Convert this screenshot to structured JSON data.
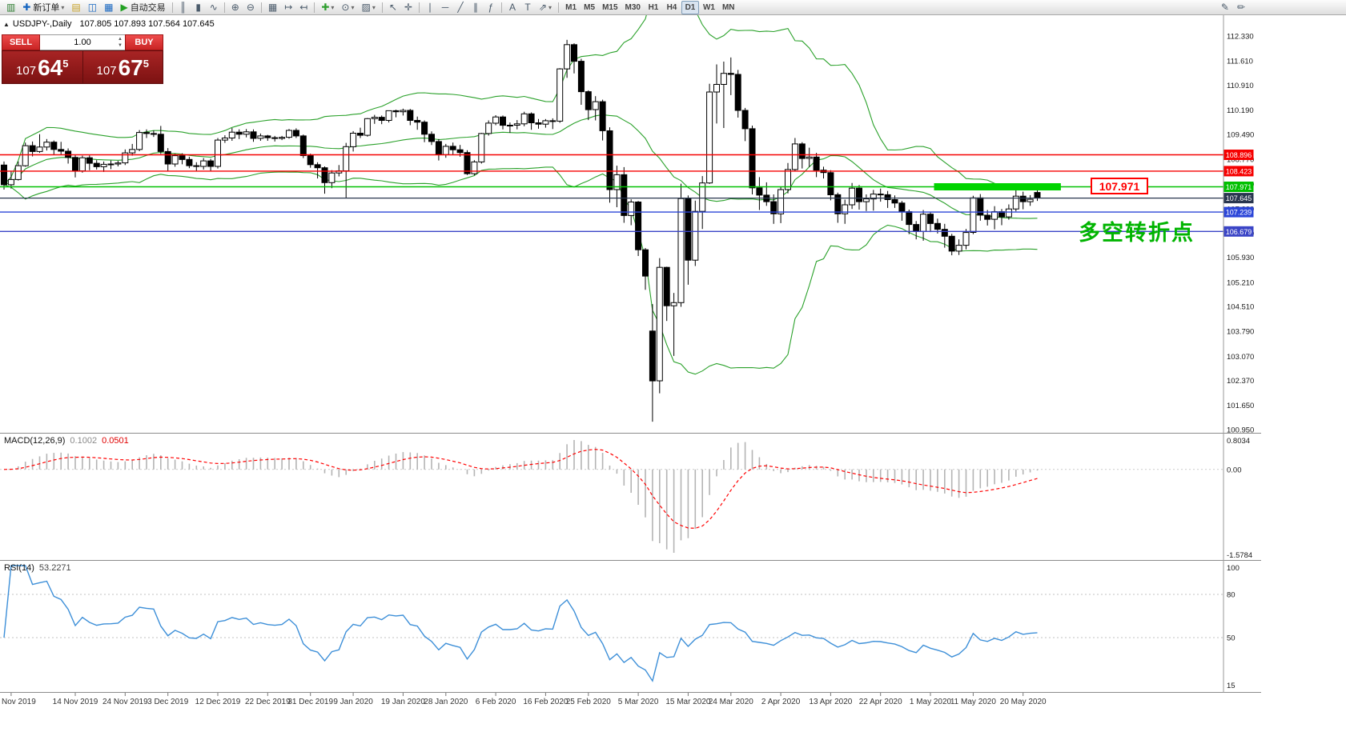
{
  "toolbar": {
    "left_items": [
      {
        "name": "chart-window-icon",
        "glyph": "▥",
        "color": "#2e7d32"
      },
      {
        "name": "new-order-button",
        "icon": "✚",
        "icon_color": "#1565c0",
        "label": "新订单",
        "caret": true
      },
      {
        "name": "profiles-icon",
        "glyph": "▤",
        "color": "#c9a227"
      },
      {
        "name": "charts-grid-icon",
        "glyph": "◫",
        "color": "#1565c0"
      },
      {
        "name": "data-window-icon",
        "glyph": "▦",
        "color": "#1565c0"
      },
      {
        "name": "autotrading-button",
        "icon": "▶",
        "icon_color": "#22a022",
        "label": "自动交易"
      },
      {
        "sep": true
      },
      {
        "name": "bar-chart-icon",
        "glyph": "║"
      },
      {
        "name": "candlestick-chart-icon",
        "glyph": "▮"
      },
      {
        "name": "line-chart-icon",
        "glyph": "∿"
      },
      {
        "sep": true
      },
      {
        "name": "zoom-in-icon",
        "glyph": "⊕"
      },
      {
        "name": "zoom-out-icon",
        "glyph": "⊖"
      },
      {
        "sep": true
      },
      {
        "name": "tile-windows-icon",
        "glyph": "▦"
      },
      {
        "name": "auto-scroll-icon",
        "glyph": "↦"
      },
      {
        "name": "chart-shift-icon",
        "glyph": "↤"
      },
      {
        "sep": true
      },
      {
        "name": "indicators-button",
        "glyph": "✚",
        "color": "#2e9e2e",
        "caret": true
      },
      {
        "name": "periods-button",
        "glyph": "⊙",
        "caret": true
      },
      {
        "name": "templates-button",
        "glyph": "▨",
        "caret": true
      },
      {
        "sep": true
      },
      {
        "name": "cursor-icon",
        "glyph": "↖"
      },
      {
        "name": "crosshair-icon",
        "glyph": "✛"
      },
      {
        "sep": true
      },
      {
        "name": "vertical-line-icon",
        "glyph": "∣"
      },
      {
        "name": "horizontal-line-icon",
        "glyph": "─"
      },
      {
        "name": "trendline-icon",
        "glyph": "╱"
      },
      {
        "name": "channel-icon",
        "glyph": "∥"
      },
      {
        "name": "fibonacci-icon",
        "glyph": "ƒ"
      },
      {
        "sep": true
      },
      {
        "name": "text-icon",
        "glyph": "A"
      },
      {
        "name": "text-label-icon",
        "glyph": "T"
      },
      {
        "name": "arrows-icon",
        "glyph": "⇗",
        "caret": true
      },
      {
        "sep": true
      }
    ],
    "timeframes": [
      {
        "label": "M1"
      },
      {
        "label": "M5"
      },
      {
        "label": "M15"
      },
      {
        "label": "M30"
      },
      {
        "label": "H1"
      },
      {
        "label": "H4"
      },
      {
        "label": "D1",
        "active": true
      },
      {
        "label": "W1"
      },
      {
        "label": "MN"
      }
    ],
    "right_items": [
      {
        "name": "pencil-icon",
        "glyph": "✎"
      },
      {
        "name": "marker-icon",
        "glyph": "✏"
      }
    ]
  },
  "chart": {
    "title_symbol": "USDJPY-,Daily",
    "title_ohlc": "107.805 107.893 107.564 107.645"
  },
  "trade_panel": {
    "sell_label": "SELL",
    "buy_label": "BUY",
    "volume": "1.00",
    "bid": {
      "prefix": "107",
      "big": "64",
      "sup": "5"
    },
    "ask": {
      "prefix": "107",
      "big": "67",
      "sup": "5"
    }
  },
  "chart_data": {
    "type": "candlestick",
    "symbol": "USDJPY",
    "period": "Daily",
    "ylim": [
      100.95,
      112.33
    ],
    "y_ticks": [
      "112.330",
      "111.610",
      "110.910",
      "110.190",
      "109.490",
      "108.770",
      "108.050",
      "107.330",
      "106.630",
      "105.930",
      "105.210",
      "104.510",
      "103.790",
      "103.070",
      "102.370",
      "101.650",
      "100.950"
    ],
    "x_labels": [
      [
        1,
        "Nov 2019"
      ],
      [
        10,
        "14 Nov 2019"
      ],
      [
        17,
        "24 Nov 2019"
      ],
      [
        23,
        "3 Dec 2019"
      ],
      [
        30,
        "12 Dec 2019"
      ],
      [
        37,
        "22 Dec 2019"
      ],
      [
        43,
        "31 Dec 2019"
      ],
      [
        49,
        "9 Jan 2020"
      ],
      [
        56,
        "19 Jan 2020"
      ],
      [
        62,
        "28 Jan 2020"
      ],
      [
        69,
        "6 Feb 2020"
      ],
      [
        76,
        "16 Feb 2020"
      ],
      [
        82,
        "25 Feb 2020"
      ],
      [
        89,
        "5 Mar 2020"
      ],
      [
        96,
        "15 Mar 2020"
      ],
      [
        102,
        "24 Mar 2020"
      ],
      [
        109,
        "2 Apr 2020"
      ],
      [
        116,
        "13 Apr 2020"
      ],
      [
        123,
        "22 Apr 2020"
      ],
      [
        130,
        "1 May 2020"
      ],
      [
        136,
        "11 May 2020"
      ],
      [
        143,
        "20 May 2020"
      ]
    ],
    "candles": [
      [
        108.6,
        108.7,
        107.89,
        108.03
      ],
      [
        108.03,
        108.42,
        107.92,
        108.18
      ],
      [
        108.18,
        108.7,
        108.15,
        108.58
      ],
      [
        108.58,
        109.25,
        108.55,
        109.16
      ],
      [
        109.16,
        109.28,
        108.85,
        108.99
      ],
      [
        108.99,
        109.49,
        108.95,
        109.12
      ],
      [
        109.12,
        109.35,
        109.02,
        109.26
      ],
      [
        109.26,
        109.31,
        108.9,
        109.05
      ],
      [
        109.05,
        109.27,
        108.91,
        109.0
      ],
      [
        109.0,
        109.08,
        108.64,
        108.82
      ],
      [
        108.82,
        108.89,
        108.24,
        108.43
      ],
      [
        108.43,
        108.87,
        108.38,
        108.81
      ],
      [
        108.81,
        108.88,
        108.45,
        108.65
      ],
      [
        108.65,
        108.74,
        108.47,
        108.55
      ],
      [
        108.55,
        108.7,
        108.4,
        108.62
      ],
      [
        108.62,
        108.73,
        108.48,
        108.63
      ],
      [
        108.63,
        108.72,
        108.56,
        108.66
      ],
      [
        108.66,
        109.05,
        108.6,
        108.95
      ],
      [
        108.95,
        109.21,
        108.87,
        109.05
      ],
      [
        109.05,
        109.61,
        109.0,
        109.54
      ],
      [
        109.54,
        109.63,
        109.38,
        109.51
      ],
      [
        109.51,
        109.6,
        109.41,
        109.49
      ],
      [
        109.49,
        109.73,
        108.92,
        108.99
      ],
      [
        108.99,
        109.09,
        108.43,
        108.63
      ],
      [
        108.63,
        108.93,
        108.55,
        108.87
      ],
      [
        108.87,
        108.94,
        108.62,
        108.76
      ],
      [
        108.76,
        108.84,
        108.51,
        108.58
      ],
      [
        108.58,
        108.68,
        108.42,
        108.56
      ],
      [
        108.56,
        108.8,
        108.47,
        108.72
      ],
      [
        108.72,
        108.78,
        108.41,
        108.56
      ],
      [
        108.56,
        109.38,
        108.5,
        109.32
      ],
      [
        109.32,
        109.46,
        109.24,
        109.38
      ],
      [
        109.38,
        109.67,
        109.3,
        109.55
      ],
      [
        109.55,
        109.63,
        109.35,
        109.49
      ],
      [
        109.49,
        109.64,
        109.4,
        109.56
      ],
      [
        109.56,
        109.63,
        109.27,
        109.37
      ],
      [
        109.37,
        109.51,
        109.3,
        109.44
      ],
      [
        109.44,
        109.47,
        109.3,
        109.39
      ],
      [
        109.39,
        109.44,
        109.28,
        109.37
      ],
      [
        109.37,
        109.44,
        109.32,
        109.4
      ],
      [
        109.4,
        109.64,
        109.36,
        109.6
      ],
      [
        109.6,
        109.66,
        109.38,
        109.44
      ],
      [
        109.44,
        109.48,
        108.8,
        108.87
      ],
      [
        108.87,
        108.93,
        108.52,
        108.61
      ],
      [
        108.61,
        108.68,
        108.21,
        108.52
      ],
      [
        108.52,
        108.56,
        107.77,
        108.09
      ],
      [
        108.09,
        108.45,
        107.93,
        108.37
      ],
      [
        108.37,
        108.6,
        108.27,
        108.43
      ],
      [
        108.43,
        109.24,
        107.65,
        109.13
      ],
      [
        109.13,
        109.58,
        108.99,
        109.52
      ],
      [
        109.52,
        109.68,
        109.38,
        109.46
      ],
      [
        109.46,
        109.96,
        109.42,
        109.94
      ],
      [
        109.94,
        110.05,
        109.79,
        109.98
      ],
      [
        109.98,
        110.03,
        109.78,
        109.89
      ],
      [
        109.89,
        110.18,
        109.83,
        110.17
      ],
      [
        110.17,
        110.2,
        109.98,
        110.14
      ],
      [
        110.14,
        110.23,
        110.03,
        110.18
      ],
      [
        110.18,
        110.22,
        109.75,
        109.89
      ],
      [
        109.89,
        110.0,
        109.62,
        109.84
      ],
      [
        109.84,
        109.89,
        109.26,
        109.49
      ],
      [
        109.49,
        109.57,
        109.18,
        109.28
      ],
      [
        109.28,
        109.35,
        108.73,
        108.9
      ],
      [
        108.9,
        109.21,
        108.81,
        109.14
      ],
      [
        109.14,
        109.25,
        108.9,
        109.04
      ],
      [
        109.04,
        109.18,
        108.84,
        108.96
      ],
      [
        108.96,
        109.03,
        108.31,
        108.35
      ],
      [
        108.35,
        108.74,
        108.3,
        108.69
      ],
      [
        108.69,
        109.53,
        108.64,
        109.51
      ],
      [
        109.51,
        109.89,
        109.45,
        109.81
      ],
      [
        109.81,
        110.04,
        109.75,
        109.99
      ],
      [
        109.99,
        110.03,
        109.63,
        109.75
      ],
      [
        109.75,
        109.83,
        109.53,
        109.75
      ],
      [
        109.75,
        109.9,
        109.63,
        109.79
      ],
      [
        109.79,
        110.14,
        109.72,
        110.08
      ],
      [
        110.08,
        110.12,
        109.62,
        109.82
      ],
      [
        109.82,
        109.93,
        109.65,
        109.78
      ],
      [
        109.78,
        109.93,
        109.68,
        109.88
      ],
      [
        109.88,
        109.95,
        109.64,
        109.87
      ],
      [
        109.87,
        111.4,
        109.82,
        111.38
      ],
      [
        111.38,
        112.22,
        111.12,
        112.08
      ],
      [
        112.08,
        112.12,
        111.25,
        111.6
      ],
      [
        111.6,
        111.67,
        110.34,
        110.72
      ],
      [
        110.72,
        110.76,
        109.9,
        110.2
      ],
      [
        110.2,
        110.59,
        109.89,
        110.43
      ],
      [
        110.43,
        110.49,
        109.31,
        109.59
      ],
      [
        109.59,
        109.69,
        107.51,
        107.89
      ],
      [
        107.89,
        108.58,
        107.38,
        108.32
      ],
      [
        108.32,
        108.54,
        106.93,
        107.14
      ],
      [
        107.14,
        107.61,
        106.86,
        107.53
      ],
      [
        107.53,
        107.56,
        105.97,
        106.15
      ],
      [
        106.15,
        106.2,
        104.99,
        105.39
      ],
      [
        103.8,
        104.58,
        101.18,
        102.36
      ],
      [
        102.36,
        105.91,
        102.0,
        105.64
      ],
      [
        105.64,
        105.66,
        104.09,
        104.53
      ],
      [
        104.53,
        104.9,
        103.08,
        104.62
      ],
      [
        104.62,
        108.06,
        104.5,
        107.63
      ],
      [
        107.63,
        107.72,
        105.14,
        105.85
      ],
      [
        105.85,
        107.57,
        105.68,
        107.26
      ],
      [
        107.26,
        108.28,
        106.75,
        108.08
      ],
      [
        108.08,
        110.95,
        108.05,
        110.71
      ],
      [
        110.71,
        111.51,
        109.8,
        110.93
      ],
      [
        110.93,
        111.59,
        109.67,
        111.25
      ],
      [
        111.25,
        111.71,
        110.62,
        111.22
      ],
      [
        111.22,
        111.35,
        109.97,
        110.18
      ],
      [
        110.18,
        110.25,
        109.29,
        109.65
      ],
      [
        109.65,
        109.74,
        107.75,
        107.94
      ],
      [
        107.94,
        108.25,
        107.3,
        107.73
      ],
      [
        107.73,
        108.1,
        107.42,
        107.54
      ],
      [
        107.54,
        107.75,
        106.9,
        107.19
      ],
      [
        107.19,
        107.96,
        106.92,
        107.89
      ],
      [
        107.89,
        108.66,
        107.78,
        108.47
      ],
      [
        108.47,
        109.38,
        108.43,
        109.21
      ],
      [
        109.21,
        109.26,
        108.5,
        108.79
      ],
      [
        108.79,
        109.1,
        108.54,
        108.83
      ],
      [
        108.83,
        108.95,
        108.25,
        108.45
      ],
      [
        108.45,
        108.55,
        108.21,
        108.38
      ],
      [
        108.38,
        108.45,
        107.58,
        107.74
      ],
      [
        107.74,
        107.8,
        106.93,
        107.19
      ],
      [
        107.19,
        107.6,
        106.9,
        107.45
      ],
      [
        107.45,
        108.08,
        107.33,
        107.93
      ],
      [
        107.93,
        108.02,
        107.31,
        107.54
      ],
      [
        107.54,
        107.75,
        107.27,
        107.62
      ],
      [
        107.62,
        107.88,
        107.28,
        107.76
      ],
      [
        107.76,
        107.92,
        107.54,
        107.74
      ],
      [
        107.74,
        107.85,
        107.36,
        107.6
      ],
      [
        107.6,
        107.72,
        107.36,
        107.5
      ],
      [
        107.5,
        107.56,
        106.99,
        107.25
      ],
      [
        107.25,
        107.31,
        106.6,
        106.88
      ],
      [
        106.88,
        106.98,
        106.45,
        106.68
      ],
      [
        106.68,
        107.3,
        106.41,
        107.18
      ],
      [
        107.18,
        107.25,
        106.66,
        106.91
      ],
      [
        106.91,
        107.05,
        106.62,
        106.74
      ],
      [
        106.74,
        106.9,
        106.21,
        106.54
      ],
      [
        106.54,
        106.61,
        105.99,
        106.11
      ],
      [
        106.11,
        106.45,
        106.0,
        106.28
      ],
      [
        106.28,
        106.75,
        106.16,
        106.65
      ],
      [
        106.65,
        107.71,
        106.6,
        107.65
      ],
      [
        107.65,
        107.76,
        106.99,
        107.15
      ],
      [
        107.15,
        107.3,
        106.85,
        107.03
      ],
      [
        107.03,
        107.41,
        106.74,
        107.25
      ],
      [
        107.25,
        107.33,
        106.86,
        107.1
      ],
      [
        107.1,
        107.46,
        107.02,
        107.33
      ],
      [
        107.33,
        107.89,
        107.26,
        107.7
      ],
      [
        107.7,
        107.83,
        107.32,
        107.54
      ],
      [
        107.54,
        107.73,
        107.42,
        107.61
      ],
      [
        107.805,
        107.893,
        107.564,
        107.645
      ]
    ],
    "bollinger": {
      "period": 20,
      "deviation": 2,
      "color": "#2aa12a"
    },
    "hlines": [
      {
        "price": 108.896,
        "label": "108.896",
        "color": "#f60000",
        "lw": 1.4
      },
      {
        "price": 108.423,
        "label": "108.423",
        "color": "#f60000",
        "lw": 1.4
      },
      {
        "price": 107.971,
        "label": "107.971",
        "color": "#00c000",
        "lw": 1.4
      },
      {
        "price": 107.645,
        "label": "107.645",
        "color": "#29364f",
        "lw": 1.2
      },
      {
        "price": 107.239,
        "label": "107.239",
        "color": "#2c46d8",
        "lw": 1.4
      },
      {
        "price": 106.679,
        "label": "106.679",
        "color": "#3b45c6",
        "lw": 1.4
      }
    ],
    "green_zone": {
      "i1": 130.5,
      "i2": 148.3,
      "price": 107.971,
      "color": "#00d400"
    },
    "price_callout": {
      "text": "107.971",
      "color": "#ff0000"
    },
    "annotation": {
      "text": "多空转折点",
      "color": "#00b400"
    },
    "macd": {
      "label": "MACD(12,26,9)",
      "value_main": "0.1002",
      "value_signal": "0.0501",
      "fast": 12,
      "slow": 26,
      "signal": 9,
      "scale_labels": [
        "0.8034",
        "0.00",
        "-1.5784"
      ],
      "histogram_color": "#b4b4b4",
      "signal_color": "#ff0000"
    },
    "rsi": {
      "label": "RSI(14)",
      "value": "53.2271",
      "period": 14,
      "scale": {
        "max": 100,
        "min": 15,
        "levels": [
          80,
          50
        ]
      },
      "tick_labels": [
        "100",
        "80",
        "50",
        "15"
      ],
      "line_color": "#3d8fd8"
    }
  }
}
